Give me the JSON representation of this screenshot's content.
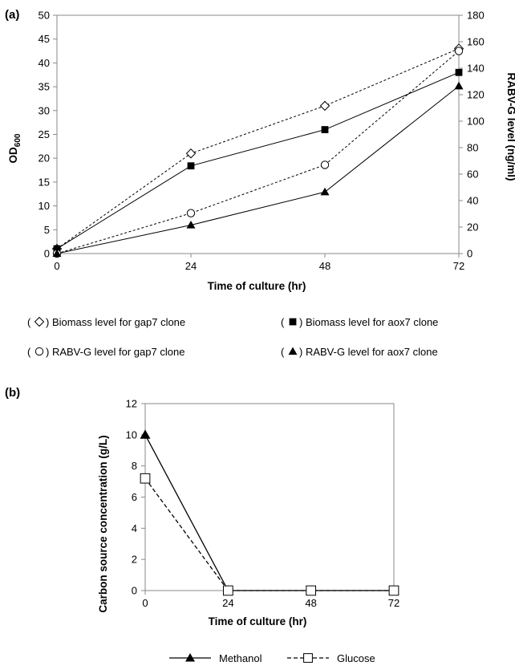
{
  "chart_data": [
    {
      "panel_label": "(a)",
      "type": "line",
      "xlabel": "Time of culture (hr)",
      "ylabel": "OD600",
      "ylabel_main": "OD",
      "ylabel_sub": "600",
      "y2label": "RABV-G level (ng/ml)",
      "x": [
        0,
        24,
        48,
        72
      ],
      "x_ticks": [
        "0",
        "24",
        "48",
        "72"
      ],
      "xlim": [
        0,
        72
      ],
      "ylim": [
        0,
        50
      ],
      "y_ticks": [
        "0",
        "5",
        "10",
        "15",
        "20",
        "25",
        "30",
        "35",
        "40",
        "45",
        "50"
      ],
      "y2lim": [
        0,
        180
      ],
      "y2_ticks": [
        "0",
        "20",
        "40",
        "60",
        "80",
        "100",
        "120",
        "140",
        "160",
        "180"
      ],
      "grid": false,
      "series": [
        {
          "name": "Biomass level for gap7 clone",
          "axis": "left",
          "marker": "open-diamond",
          "line": "dashed",
          "values": [
            1,
            21,
            31,
            43
          ]
        },
        {
          "name": "Biomass level for aox7 clone",
          "axis": "left",
          "marker": "filled-square",
          "line": "solid",
          "values": [
            1,
            18.4,
            26,
            38
          ]
        },
        {
          "name": "RABV-G level for gap7 clone",
          "axis": "right",
          "marker": "open-circle",
          "line": "dashed",
          "values": [
            0,
            30.5,
            67,
            153
          ]
        },
        {
          "name": "RABV-G level for aox7 clone",
          "axis": "right",
          "marker": "filled-triangle",
          "line": "solid",
          "values": [
            0,
            21.5,
            46.5,
            126.5
          ]
        }
      ],
      "legend": [
        {
          "open": "(",
          "close": ") Biomass level for gap7 clone",
          "marker": "open-diamond"
        },
        {
          "open": "(",
          "close": ") Biomass level for aox7 clone",
          "marker": "filled-square"
        },
        {
          "open": "(",
          "close": ") RABV-G level for gap7 clone",
          "marker": "open-circle"
        },
        {
          "open": "(",
          "close": ") RABV-G level for aox7 clone",
          "marker": "filled-triangle"
        }
      ],
      "legend_placement": "below"
    },
    {
      "panel_label": "(b)",
      "type": "line",
      "xlabel": "Time of culture  (hr)",
      "ylabel": "Carbon source concentration (g/L)",
      "x": [
        0,
        24,
        48,
        72
      ],
      "x_ticks": [
        "0",
        "24",
        "48",
        "72"
      ],
      "xlim": [
        0,
        72
      ],
      "ylim": [
        0,
        12
      ],
      "y_ticks": [
        "0",
        "2",
        "4",
        "6",
        "8",
        "10",
        "12"
      ],
      "grid": false,
      "series": [
        {
          "name": "Methanol",
          "marker": "filled-triangle",
          "line": "solid",
          "values": [
            10,
            0,
            0,
            0
          ]
        },
        {
          "name": "Glucose",
          "marker": "open-square",
          "line": "dashed",
          "values": [
            7.2,
            0,
            0,
            0
          ]
        }
      ],
      "legend": [
        {
          "label": "Methanol",
          "marker": "filled-triangle",
          "line": "solid"
        },
        {
          "label": "Glucose",
          "marker": "open-square",
          "line": "dashed"
        }
      ],
      "legend_placement": "bottom"
    }
  ],
  "colors": {
    "ink": "#000000",
    "background": "#ffffff"
  }
}
